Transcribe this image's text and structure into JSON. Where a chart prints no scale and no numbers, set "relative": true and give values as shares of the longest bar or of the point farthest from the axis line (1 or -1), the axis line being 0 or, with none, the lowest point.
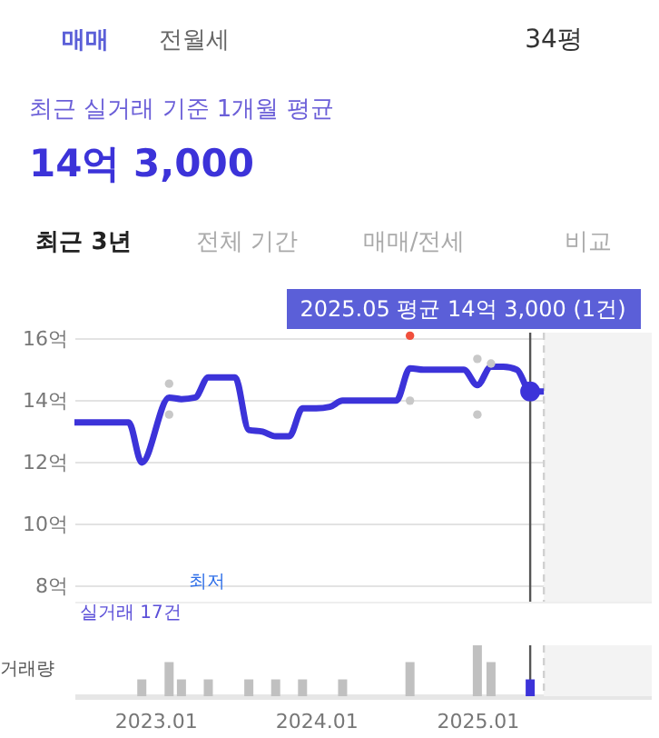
{
  "chart_data": [
    {
      "type": "other",
      "annotations": [
        "매매",
        "전월세",
        "34평",
        "최근 실거래 기준 1개월 평균",
        "14억 3,000",
        "최근 3년",
        "전체 기간",
        "매매/전세",
        "비교"
      ]
    },
    {
      "type": "line",
      "xlim": [
        "2022-07",
        "2026-02"
      ],
      "ylim": [
        7.5,
        16.2
      ],
      "yticks": [
        {
          "value": 8,
          "label": "8억"
        },
        {
          "value": 10,
          "label": "10억"
        },
        {
          "value": 12,
          "label": "12억"
        },
        {
          "value": 14,
          "label": "14억"
        },
        {
          "value": 16,
          "label": "16억"
        }
      ],
      "tick_labels": "y",
      "grid": "y",
      "line_style": "solid",
      "series": [
        {
          "type": "line",
          "color": "#3c33d9",
          "x": [
            "2022-07",
            "2022-08",
            "2022-09",
            "2022-10",
            "2022-11",
            "2022-12",
            "2023-02",
            "2023-03",
            "2023-04",
            "2023-05",
            "2023-06",
            "2023-07",
            "2023-08",
            "2023-09",
            "2023-10",
            "2023-11",
            "2023-12",
            "2024-01",
            "2024-02",
            "2024-03",
            "2024-04",
            "2024-05",
            "2024-06",
            "2024-07",
            "2024-08",
            "2024-09",
            "2024-10",
            "2024-11",
            "2024-12",
            "2025-01",
            "2025-02",
            "2025-03",
            "2025-04",
            "2025-05",
            "2025-06"
          ],
          "values": [
            13.3,
            13.3,
            13.3,
            13.3,
            13.3,
            12.0,
            14.1,
            14.05,
            14.1,
            14.75,
            14.75,
            14.75,
            13.05,
            13.0,
            12.85,
            12.85,
            13.75,
            13.75,
            13.8,
            14.0,
            14.0,
            14.0,
            14.0,
            14.0,
            15.05,
            15.0,
            15.0,
            15.0,
            15.0,
            14.5,
            15.1,
            15.1,
            15.0,
            14.3,
            14.3
          ]
        },
        {
          "type": "scatter",
          "color": "#c8c8c8",
          "x": [
            "2023-02",
            "2023-02",
            "2024-08",
            "2025-01",
            "2025-01",
            "2025-02"
          ],
          "values": [
            14.55,
            13.55,
            14.0,
            13.55,
            15.35,
            15.2
          ]
        },
        {
          "type": "scatter",
          "color": "#f04f3c",
          "x": [
            "2024-08"
          ],
          "values": [
            16.1
          ]
        },
        {
          "type": "scatter",
          "color": "#3c33d9",
          "x": [
            "2025-05"
          ],
          "values": [
            14.3
          ]
        }
      ],
      "ref_lines": [
        {
          "axis": "x",
          "value": "2025-05",
          "color": "#555555",
          "line_style": "solid"
        },
        {
          "axis": "x",
          "value": "2025-06",
          "color": "#d0d0d0",
          "line_style": "dashed"
        }
      ],
      "bands": [
        {
          "axis": "x",
          "from": "2025-06",
          "to": "2026-02",
          "color": "#f3f3f3"
        }
      ],
      "annotations": [
        "2025.05 평균 14억 3,000 (1건)",
        "최저",
        "실거래 17건"
      ]
    },
    {
      "type": "bar",
      "relative": true,
      "ylabel": "거래량",
      "xlim": [
        "2022-07",
        "2026-02"
      ],
      "xticks": [
        {
          "value": "2023-01",
          "label": "2023.01"
        },
        {
          "value": "2024-01",
          "label": "2024.01"
        },
        {
          "value": "2025-01",
          "label": "2025.01"
        }
      ],
      "tick_labels": "x",
      "x": [
        "2022-12",
        "2023-02",
        "2023-03",
        "2023-05",
        "2023-08",
        "2023-10",
        "2023-12",
        "2024-03",
        "2024-08",
        "2025-01",
        "2025-02",
        "2025-05"
      ],
      "values": [
        0.33,
        0.67,
        0.33,
        0.33,
        0.33,
        0.33,
        0.33,
        0.33,
        0.67,
        1,
        0.67,
        0.33
      ],
      "colors": [
        "#c0c0c0",
        "#c0c0c0",
        "#c0c0c0",
        "#c0c0c0",
        "#c0c0c0",
        "#c0c0c0",
        "#c0c0c0",
        "#c0c0c0",
        "#c0c0c0",
        "#c0c0c0",
        "#c0c0c0",
        "#3c33d9"
      ],
      "ref_lines": [
        {
          "axis": "x",
          "value": "2025-05",
          "color": "#555555",
          "line_style": "solid"
        },
        {
          "axis": "x",
          "value": "2025-06",
          "color": "#d0d0d0",
          "line_style": "dashed"
        }
      ],
      "bands": [
        {
          "axis": "x",
          "from": "2025-06",
          "to": "2026-02",
          "color": "#f3f3f3"
        }
      ]
    }
  ]
}
